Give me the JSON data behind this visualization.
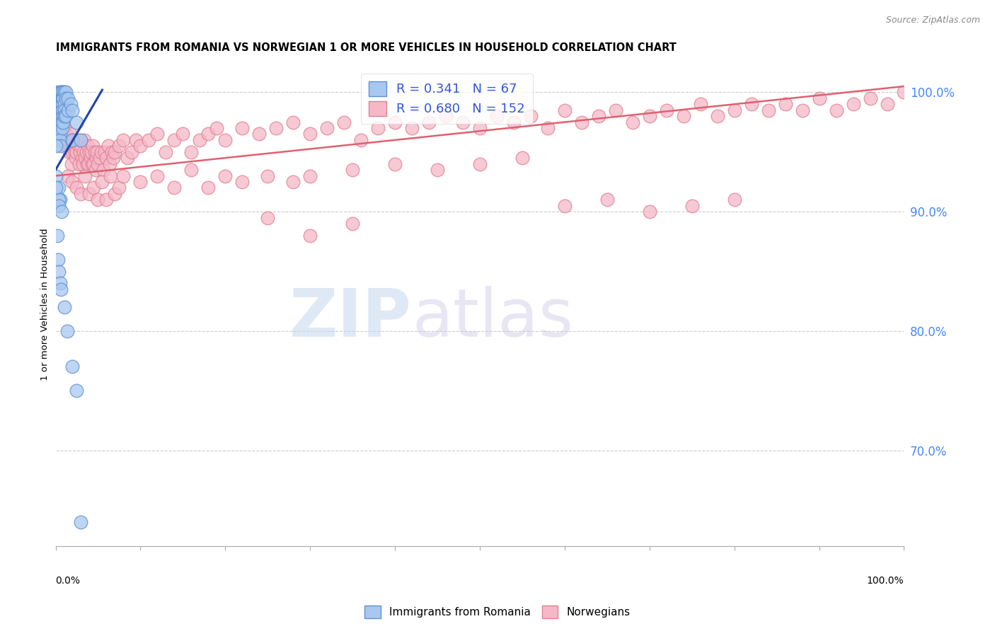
{
  "title": "IMMIGRANTS FROM ROMANIA VS NORWEGIAN 1 OR MORE VEHICLES IN HOUSEHOLD CORRELATION CHART",
  "source": "Source: ZipAtlas.com",
  "ylabel": "1 or more Vehicles in Household",
  "right_yticks": [
    70.0,
    80.0,
    90.0,
    100.0
  ],
  "legend_blue_r": "0.341",
  "legend_blue_n": "67",
  "legend_pink_r": "0.680",
  "legend_pink_n": "152",
  "blue_color": "#A8C8F0",
  "pink_color": "#F5B8C8",
  "blue_edge_color": "#6090D0",
  "pink_edge_color": "#E08090",
  "blue_line_color": "#2244AA",
  "pink_line_color": "#E06070",
  "watermark_zip": "ZIP",
  "watermark_atlas": "atlas",
  "blue_scatter_x": [
    0.0,
    0.0,
    0.0,
    0.0,
    0.0,
    0.0,
    0.0,
    0.0,
    0.0,
    0.0,
    0.5,
    0.5,
    0.5,
    0.5,
    0.5,
    0.5,
    0.5,
    0.6,
    0.6,
    0.6,
    0.6,
    0.6,
    0.7,
    0.7,
    0.7,
    0.7,
    0.7,
    0.8,
    0.8,
    0.8,
    0.8,
    0.9,
    0.9,
    0.9,
    0.9,
    1.0,
    1.0,
    1.0,
    1.0,
    1.2,
    1.2,
    1.2,
    1.5,
    1.5,
    1.8,
    2.0,
    2.0,
    2.5,
    3.0,
    0.4,
    0.4,
    0.4,
    0.5,
    0.7,
    1.0,
    1.4,
    2.0,
    2.5,
    3.0,
    0.0,
    0.0,
    0.2,
    0.3,
    0.4,
    0.5,
    0.6
  ],
  "blue_scatter_y": [
    100.0,
    99.5,
    99.0,
    98.5,
    98.0,
    97.5,
    97.0,
    96.5,
    96.0,
    93.0,
    100.0,
    99.0,
    98.0,
    97.0,
    96.5,
    96.0,
    91.0,
    100.0,
    99.5,
    99.0,
    98.5,
    98.0,
    100.0,
    99.5,
    99.0,
    98.0,
    97.5,
    99.5,
    99.0,
    98.5,
    97.0,
    100.0,
    99.5,
    98.0,
    97.5,
    100.0,
    99.0,
    98.5,
    98.0,
    100.0,
    99.5,
    98.0,
    99.5,
    98.5,
    99.0,
    98.5,
    96.0,
    97.5,
    96.0,
    92.0,
    91.0,
    90.5,
    95.5,
    90.0,
    82.0,
    80.0,
    77.0,
    75.0,
    64.0,
    95.5,
    92.0,
    88.0,
    86.0,
    85.0,
    84.0,
    83.5
  ],
  "pink_scatter_x": [
    0.5,
    0.6,
    0.7,
    0.8,
    0.9,
    1.0,
    1.2,
    1.3,
    1.4,
    1.5,
    1.6,
    1.7,
    1.8,
    1.9,
    2.0,
    2.1,
    2.2,
    2.3,
    2.4,
    2.5,
    2.6,
    2.7,
    2.8,
    2.9,
    3.0,
    3.1,
    3.2,
    3.3,
    3.4,
    3.5,
    3.6,
    3.7,
    3.8,
    3.9,
    4.0,
    4.1,
    4.2,
    4.3,
    4.4,
    4.5,
    4.6,
    4.7,
    4.8,
    4.9,
    5.0,
    5.2,
    5.4,
    5.6,
    5.8,
    6.0,
    6.2,
    6.4,
    6.6,
    6.8,
    7.0,
    7.5,
    8.0,
    8.5,
    9.0,
    9.5,
    10.0,
    11.0,
    12.0,
    13.0,
    14.0,
    15.0,
    16.0,
    17.0,
    18.0,
    19.0,
    20.0,
    22.0,
    24.0,
    26.0,
    28.0,
    30.0,
    32.0,
    34.0,
    36.0,
    38.0,
    40.0,
    42.0,
    44.0,
    46.0,
    48.0,
    50.0,
    52.0,
    54.0,
    56.0,
    58.0,
    60.0,
    62.0,
    64.0,
    66.0,
    68.0,
    70.0,
    72.0,
    74.0,
    76.0,
    78.0,
    80.0,
    82.0,
    84.0,
    86.0,
    88.0,
    90.0,
    92.0,
    94.0,
    96.0,
    98.0,
    100.0,
    1.5,
    2.0,
    2.5,
    3.0,
    3.5,
    4.0,
    4.5,
    5.0,
    5.5,
    6.0,
    6.5,
    7.0,
    7.5,
    8.0,
    10.0,
    12.0,
    14.0,
    16.0,
    18.0,
    20.0,
    22.0,
    25.0,
    28.0,
    30.0,
    35.0,
    40.0,
    45.0,
    50.0,
    55.0,
    25.0,
    30.0,
    35.0,
    60.0,
    65.0,
    70.0,
    75.0,
    80.0
  ],
  "pink_scatter_y": [
    98.0,
    97.5,
    97.0,
    96.0,
    96.5,
    97.0,
    96.5,
    96.0,
    95.5,
    96.0,
    95.0,
    96.5,
    95.5,
    94.0,
    95.0,
    96.0,
    95.5,
    95.0,
    94.5,
    95.0,
    96.0,
    95.5,
    94.0,
    95.0,
    95.5,
    94.5,
    94.0,
    95.0,
    96.0,
    94.5,
    95.0,
    94.0,
    95.5,
    94.0,
    95.0,
    94.5,
    95.0,
    94.0,
    95.5,
    94.0,
    95.0,
    93.5,
    94.5,
    95.0,
    94.0,
    94.5,
    95.0,
    93.5,
    95.0,
    94.5,
    95.5,
    94.0,
    95.0,
    94.5,
    95.0,
    95.5,
    96.0,
    94.5,
    95.0,
    96.0,
    95.5,
    96.0,
    96.5,
    95.0,
    96.0,
    96.5,
    95.0,
    96.0,
    96.5,
    97.0,
    96.0,
    97.0,
    96.5,
    97.0,
    97.5,
    96.5,
    97.0,
    97.5,
    96.0,
    97.0,
    97.5,
    97.0,
    97.5,
    98.0,
    97.5,
    97.0,
    98.0,
    97.5,
    98.0,
    97.0,
    98.5,
    97.5,
    98.0,
    98.5,
    97.5,
    98.0,
    98.5,
    98.0,
    99.0,
    98.0,
    98.5,
    99.0,
    98.5,
    99.0,
    98.5,
    99.5,
    98.5,
    99.0,
    99.5,
    99.0,
    100.0,
    93.0,
    92.5,
    92.0,
    91.5,
    93.0,
    91.5,
    92.0,
    91.0,
    92.5,
    91.0,
    93.0,
    91.5,
    92.0,
    93.0,
    92.5,
    93.0,
    92.0,
    93.5,
    92.0,
    93.0,
    92.5,
    93.0,
    92.5,
    93.0,
    93.5,
    94.0,
    93.5,
    94.0,
    94.5,
    89.5,
    88.0,
    89.0,
    90.5,
    91.0,
    90.0,
    90.5,
    91.0
  ],
  "blue_trend_x": [
    0.0,
    5.5
  ],
  "blue_trend_y": [
    93.5,
    100.2
  ],
  "pink_trend_x": [
    0.0,
    100.0
  ],
  "pink_trend_y": [
    93.0,
    100.5
  ],
  "xlim": [
    0.0,
    100.0
  ],
  "ylim": [
    62.0,
    102.5
  ],
  "title_fontsize": 10.5,
  "source_fontsize": 9,
  "axis_label_fontsize": 9.5,
  "legend_fontsize": 13,
  "right_axis_color": "#4488FF",
  "grid_color": "#CCCCCC",
  "background_color": "#FFFFFF"
}
